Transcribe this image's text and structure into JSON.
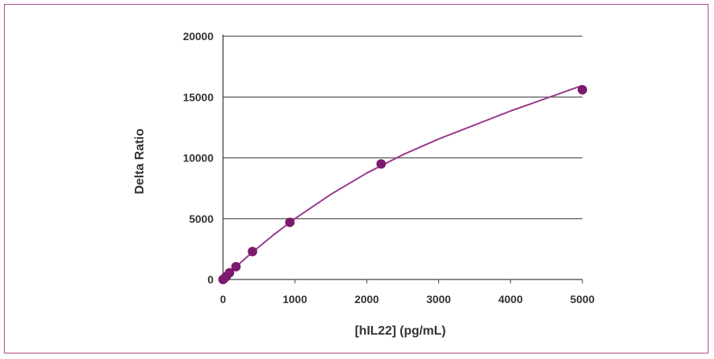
{
  "chart_data": {
    "type": "scatter",
    "title": "",
    "xlabel": "[hIL22] (pg/mL)",
    "ylabel": "Delta Ratio",
    "xlim": [
      0,
      5000
    ],
    "ylim": [
      0,
      20000
    ],
    "x_ticks": [
      0,
      1000,
      2000,
      3000,
      4000,
      5000
    ],
    "y_ticks": [
      0,
      5000,
      10000,
      15000,
      20000
    ],
    "grid": "horizontal",
    "legend": "none",
    "series": [
      {
        "points": [
          {
            "x": 0,
            "y": 0
          },
          {
            "x": 20,
            "y": 100
          },
          {
            "x": 45,
            "y": 250
          },
          {
            "x": 90,
            "y": 550
          },
          {
            "x": 180,
            "y": 1050
          },
          {
            "x": 410,
            "y": 2300
          },
          {
            "x": 930,
            "y": 4700
          },
          {
            "x": 2200,
            "y": 9500
          },
          {
            "x": 5000,
            "y": 15600
          }
        ],
        "fit_curve": {
          "x": [
            0,
            100,
            200,
            400,
            700,
            1000,
            1500,
            2000,
            2500,
            3000,
            3500,
            4000,
            4500,
            5000
          ],
          "y": [
            0,
            600,
            1150,
            2200,
            3650,
            5000,
            7000,
            8750,
            10250,
            11550,
            12700,
            13850,
            14900,
            15950
          ]
        }
      }
    ],
    "colors": {
      "marker": "#7b1a6e",
      "curve": "#9a3a8e",
      "grid": "#555555",
      "frame": "#b04a8c"
    }
  }
}
